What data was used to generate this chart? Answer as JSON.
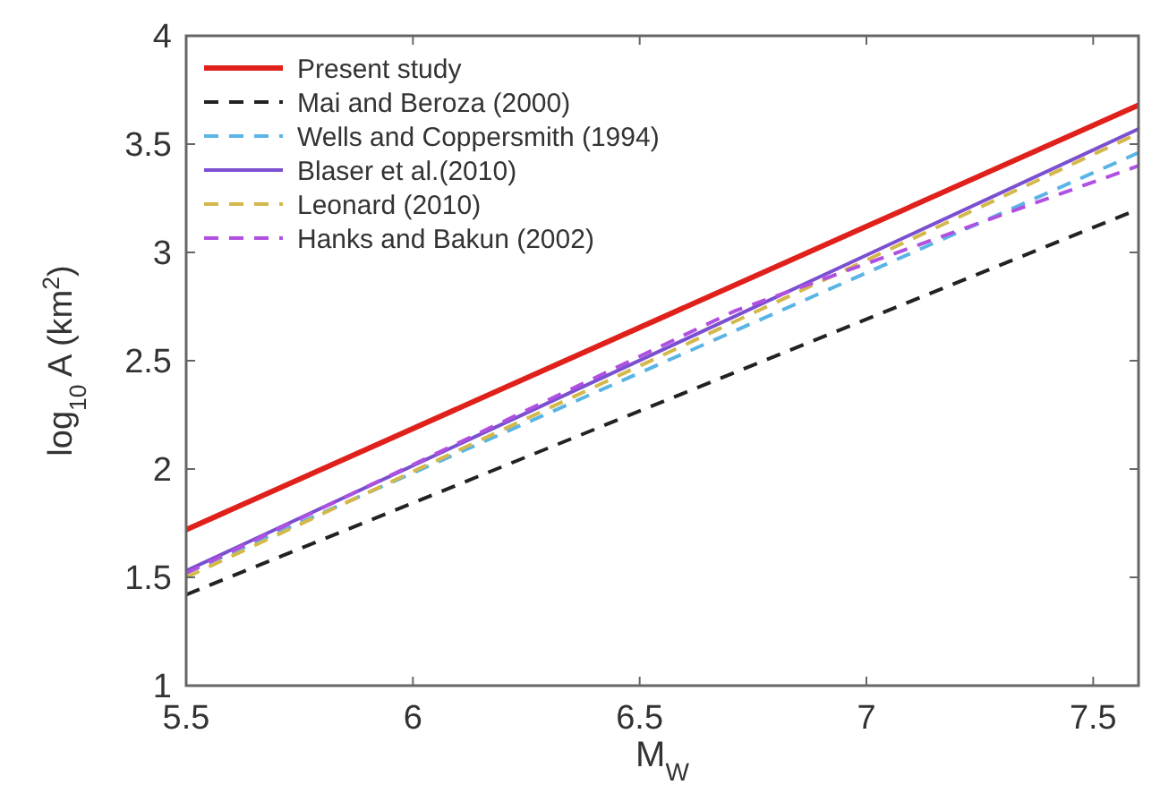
{
  "chart_data": {
    "type": "line",
    "xlabel": "M$_{W}$",
    "ylabel": "log$_{10}$ A (km$^{2}$)",
    "xlim": [
      5.5,
      7.6
    ],
    "xticks": [
      {
        "value": 5.5,
        "label": "5.5"
      },
      6,
      {
        "value": 6.5,
        "label": "6.5"
      },
      7,
      {
        "value": 7.5,
        "label": "7.5"
      }
    ],
    "ylim": [
      1,
      4
    ],
    "yticks": [
      1,
      {
        "value": 1.5,
        "label": "1.5"
      },
      2,
      {
        "value": 2.5,
        "label": "2.5"
      },
      3,
      {
        "value": 3.5,
        "label": "3.5"
      },
      4
    ],
    "grid": false,
    "legend": "top left",
    "marker": "none",
    "series": [
      {
        "name": "Present study",
        "color": "#e0201b",
        "line_style": "solid",
        "x": [
          5.5,
          7.6
        ],
        "values": [
          1.72,
          3.68
        ]
      },
      {
        "name": "Mai and Beroza (2000)",
        "color": "#222222",
        "line_style": "dashed",
        "x": [
          5.5,
          7.6
        ],
        "values": [
          1.42,
          3.2
        ]
      },
      {
        "name": "Wells and Coppersmith (1994)",
        "color": "#5ab4e6",
        "line_style": "dashed",
        "x": [
          5.5,
          7.6
        ],
        "values": [
          1.52,
          3.46
        ]
      },
      {
        "name": "Blaser et al.(2010)",
        "color": "#7a4fd0",
        "line_style": "solid",
        "x": [
          5.5,
          7.6
        ],
        "values": [
          1.53,
          3.57
        ]
      },
      {
        "name": "Leonard (2010)",
        "color": "#d4b84a",
        "line_style": "dashed",
        "x": [
          5.5,
          7.6
        ],
        "values": [
          1.5,
          3.55
        ]
      },
      {
        "name": "Hanks and Bakun (2002)",
        "color": "#b050e0",
        "line_style": "dashed",
        "x": [
          5.5,
          6.71,
          7.6
        ],
        "values": [
          1.52,
          2.73,
          3.4
        ]
      }
    ]
  }
}
